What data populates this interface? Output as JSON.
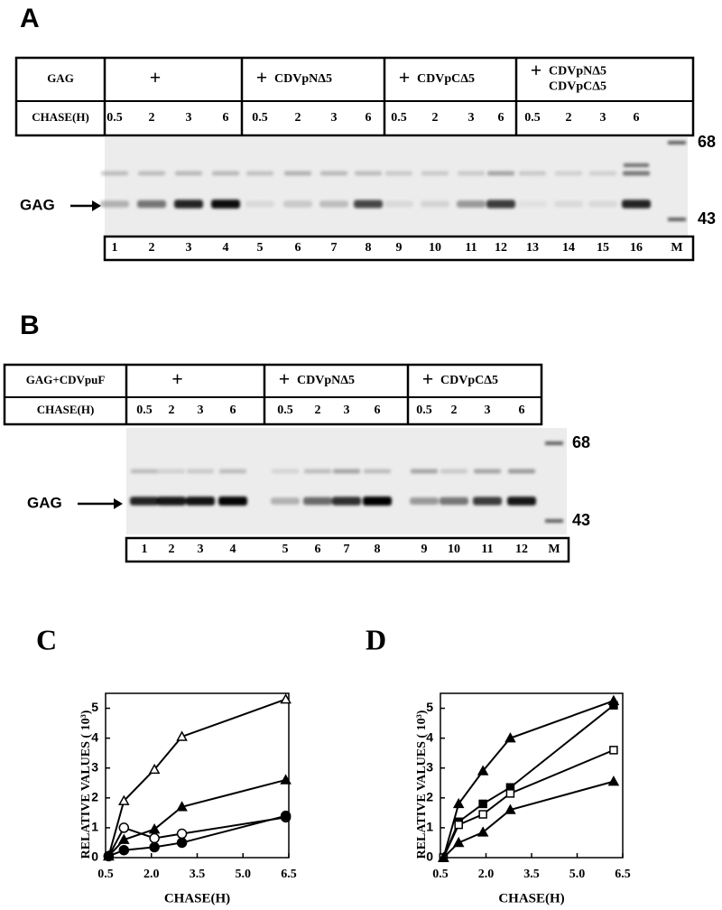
{
  "panels": [
    {
      "label": "A",
      "table": {
        "row_label": "GAG",
        "groups": [
          {
            "sign": "+",
            "names": []
          },
          {
            "sign": "+",
            "names": [
              "CDVpNΔ5"
            ]
          },
          {
            "sign": "+",
            "names": [
              "CDVpCΔ5"
            ]
          },
          {
            "sign": "+",
            "names": [
              "CDVpNΔ5",
              "CDVpCΔ5"
            ]
          }
        ],
        "chase_label": "CHASE(H)",
        "chase": [
          "0.5",
          "2",
          "3",
          "6",
          "0.5",
          "2",
          "3",
          "6",
          "0.5",
          "2",
          "3",
          "6",
          "0.5",
          "2",
          "3",
          "6"
        ]
      },
      "gel": {
        "arrow_label": "GAG",
        "markers": [
          "68",
          "43"
        ],
        "lanes": [
          "1",
          "2",
          "3",
          "4",
          "5",
          "6",
          "7",
          "8",
          "9",
          "10",
          "11",
          "12",
          "13",
          "14",
          "15",
          "16",
          "M"
        ]
      }
    },
    {
      "label": "B",
      "table": {
        "row_label": "GAG+CDVpuF",
        "groups": [
          {
            "sign": "+",
            "names": []
          },
          {
            "sign": "+",
            "names": [
              "CDVpNΔ5"
            ]
          },
          {
            "sign": "+",
            "names": [
              "CDVpCΔ5"
            ]
          }
        ],
        "chase_label": "CHASE(H)",
        "chase": [
          "0.5",
          "2",
          "3",
          "6",
          "0.5",
          "2",
          "3",
          "6",
          "0.5",
          "2",
          "3",
          "6"
        ]
      },
      "gel": {
        "arrow_label": "GAG",
        "markers": [
          "68",
          "43"
        ],
        "lanes": [
          "1",
          "2",
          "3",
          "4",
          "5",
          "6",
          "7",
          "8",
          "9",
          "10",
          "11",
          "12",
          "M"
        ]
      }
    }
  ],
  "chart_data": [
    {
      "type": "line",
      "label": "C",
      "x_label": "CHASE(H)",
      "y_label": "RELATIVE VALUES ( 10³)",
      "x": [
        0.6,
        1.1,
        2.1,
        3.0,
        6.4
      ],
      "xlim": [
        0.5,
        6.5
      ],
      "xticks": [
        0.5,
        {
          "value": 2,
          "label": "2.0"
        },
        3.5,
        {
          "value": 5,
          "label": "5.0"
        },
        6.5
      ],
      "ylim": [
        0,
        5.5
      ],
      "yticks": [
        0,
        1,
        2,
        3,
        4,
        5
      ],
      "series": [
        {
          "marker": "triangle-open",
          "color": "#000000",
          "values": [
            0.05,
            1.9,
            2.95,
            4.05,
            5.3
          ]
        },
        {
          "marker": "triangle-filled",
          "color": "#000000",
          "values": [
            0.05,
            0.6,
            0.95,
            1.7,
            2.6
          ]
        },
        {
          "marker": "circle-open",
          "color": "#000000",
          "values": [
            0.05,
            1.0,
            0.65,
            0.8,
            1.35
          ]
        },
        {
          "marker": "circle-filled",
          "color": "#000000",
          "values": [
            0.05,
            0.25,
            0.35,
            0.5,
            1.4
          ]
        }
      ]
    },
    {
      "type": "line",
      "label": "D",
      "x_label": "CHASE(H)",
      "y_label": "RELATIVE VALUES ( 10³)",
      "x": [
        0.6,
        1.1,
        1.9,
        2.8,
        6.2
      ],
      "xlim": [
        0.5,
        6.5
      ],
      "xticks": [
        0.5,
        {
          "value": 2,
          "label": "2.0"
        },
        3.5,
        {
          "value": 5,
          "label": "5.0"
        },
        6.5
      ],
      "ylim": [
        0,
        5.5
      ],
      "yticks": [
        0,
        1,
        2,
        3,
        4,
        5
      ],
      "series": [
        {
          "marker": "triangle-filled",
          "color": "#000000",
          "values": [
            0,
            1.8,
            2.9,
            4.0,
            5.25
          ]
        },
        {
          "marker": "square-filled",
          "color": "#000000",
          "values": [
            0,
            1.2,
            1.8,
            2.35,
            5.1
          ]
        },
        {
          "marker": "square-open",
          "color": "#000000",
          "values": [
            0,
            1.1,
            1.45,
            2.15,
            3.6
          ]
        },
        {
          "marker": "triangle-filled",
          "color": "#000000",
          "values": [
            0,
            0.5,
            0.85,
            1.6,
            2.55
          ]
        }
      ]
    }
  ]
}
